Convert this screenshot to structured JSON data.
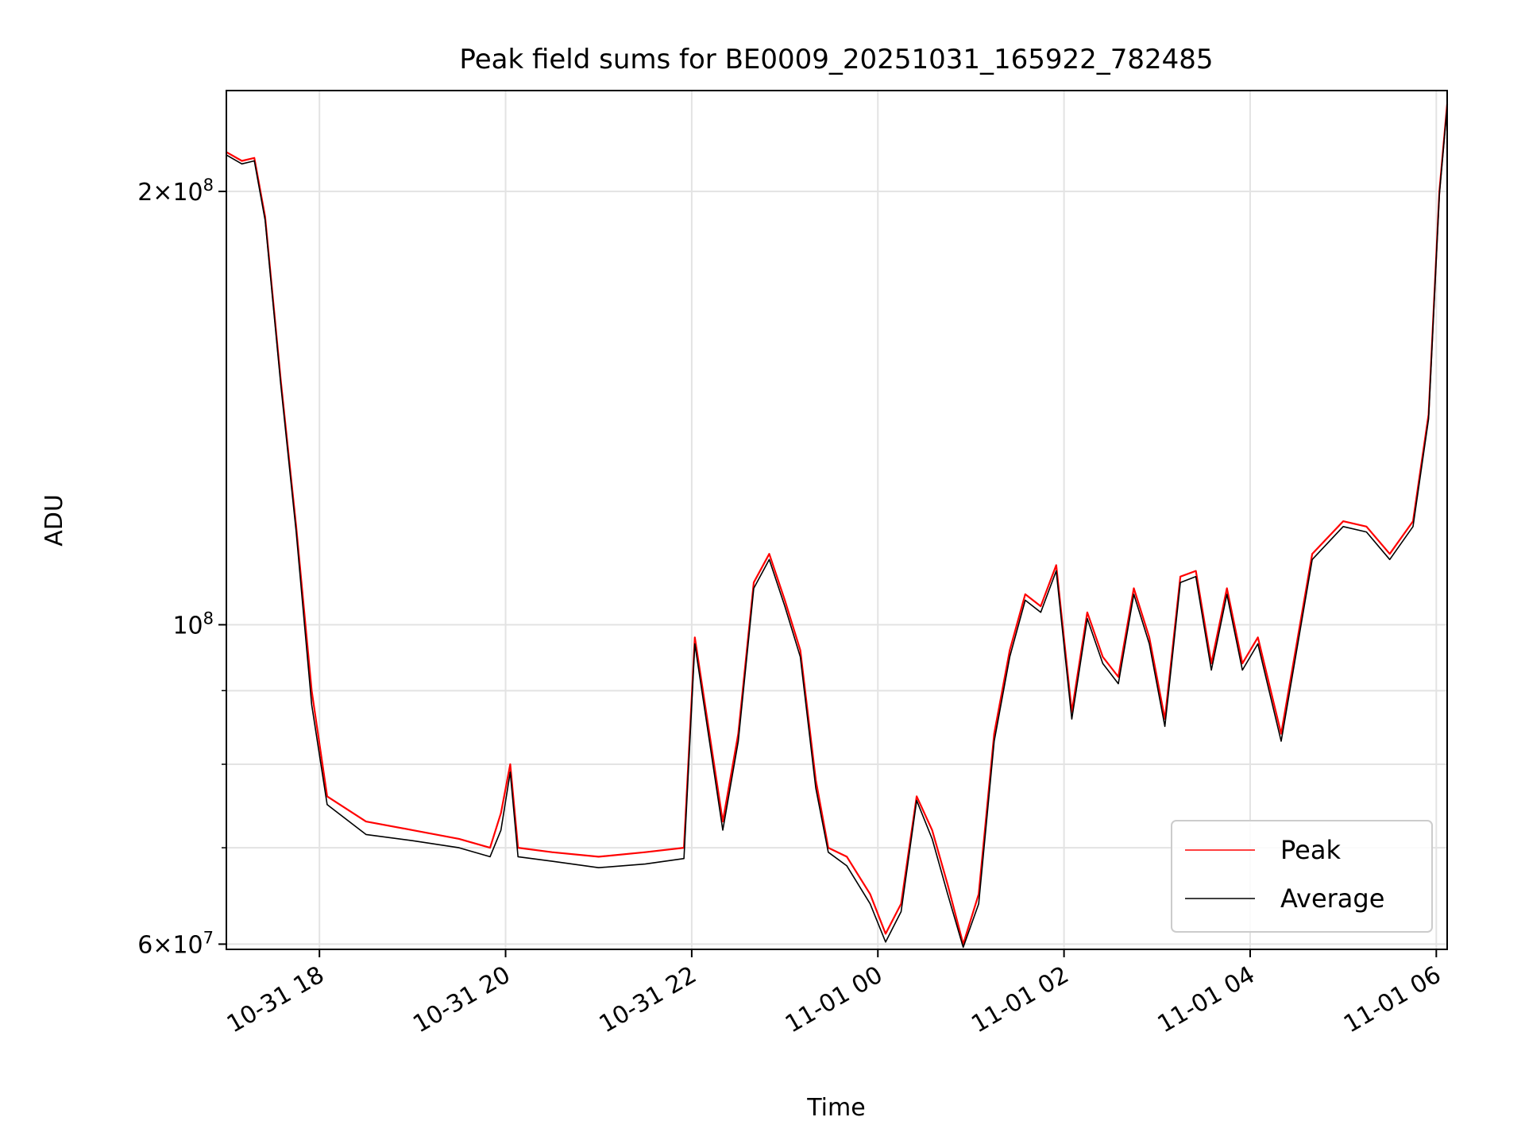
{
  "chart_data": {
    "type": "line",
    "title": "Peak field sums for BE0009_20251031_165922_782485",
    "xlabel": "Time",
    "ylabel": "ADU",
    "yscale": "log",
    "ylim": [
      59500000,
      235000000
    ],
    "xlim": [
      "2025-10-31 17:00",
      "2025-11-01 06:07"
    ],
    "grid": true,
    "legend_position": "lower-right",
    "x_ticks": [
      {
        "value": "2025-10-31 18:00",
        "label": "10-31 18"
      },
      {
        "value": "2025-10-31 20:00",
        "label": "10-31 20"
      },
      {
        "value": "2025-10-31 22:00",
        "label": "10-31 22"
      },
      {
        "value": "2025-11-01 00:00",
        "label": "11-01 00"
      },
      {
        "value": "2025-11-01 02:00",
        "label": "11-01 02"
      },
      {
        "value": "2025-11-01 04:00",
        "label": "11-01 04"
      },
      {
        "value": "2025-11-01 06:00",
        "label": "11-01 06"
      }
    ],
    "y_major_ticks": [
      {
        "value": 60000000,
        "base": "6",
        "exp": "7"
      },
      {
        "value": 100000000,
        "base": "",
        "exp": "8"
      },
      {
        "value": 200000000,
        "base": "2",
        "exp": "8"
      }
    ],
    "y_minor_ticks": [
      70000000,
      80000000,
      90000000
    ],
    "series": [
      {
        "name": "Peak",
        "color": "#ff0000",
        "x": [
          "2025-10-31 17:00",
          "2025-10-31 17:10",
          "2025-10-31 17:18",
          "2025-10-31 17:25",
          "2025-10-31 17:35",
          "2025-10-31 17:45",
          "2025-10-31 17:55",
          "2025-10-31 18:05",
          "2025-10-31 18:30",
          "2025-10-31 19:00",
          "2025-10-31 19:30",
          "2025-10-31 19:50",
          "2025-10-31 19:57",
          "2025-10-31 20:03",
          "2025-10-31 20:08",
          "2025-10-31 20:30",
          "2025-10-31 21:00",
          "2025-10-31 21:30",
          "2025-10-31 21:55",
          "2025-10-31 22:02",
          "2025-10-31 22:10",
          "2025-10-31 22:20",
          "2025-10-31 22:30",
          "2025-10-31 22:40",
          "2025-10-31 22:50",
          "2025-10-31 23:00",
          "2025-10-31 23:10",
          "2025-10-31 23:20",
          "2025-10-31 23:28",
          "2025-10-31 23:40",
          "2025-10-31 23:55",
          "2025-11-01 00:05",
          "2025-11-01 00:15",
          "2025-11-01 00:25",
          "2025-11-01 00:35",
          "2025-11-01 00:45",
          "2025-11-01 00:55",
          "2025-11-01 01:05",
          "2025-11-01 01:15",
          "2025-11-01 01:25",
          "2025-11-01 01:35",
          "2025-11-01 01:45",
          "2025-11-01 01:55",
          "2025-11-01 02:05",
          "2025-11-01 02:15",
          "2025-11-01 02:25",
          "2025-11-01 02:35",
          "2025-11-01 02:45",
          "2025-11-01 02:55",
          "2025-11-01 03:05",
          "2025-11-01 03:15",
          "2025-11-01 03:25",
          "2025-11-01 03:35",
          "2025-11-01 03:45",
          "2025-11-01 03:55",
          "2025-11-01 04:05",
          "2025-11-01 04:20",
          "2025-11-01 04:40",
          "2025-11-01 05:00",
          "2025-11-01 05:15",
          "2025-11-01 05:30",
          "2025-11-01 05:45",
          "2025-11-01 05:55",
          "2025-11-01 06:02",
          "2025-11-01 06:07"
        ],
        "values": [
          213000000,
          210000000,
          211000000,
          192000000,
          148000000,
          117000000,
          90000000,
          76000000,
          73000000,
          72000000,
          71000000,
          70000000,
          74000000,
          80000000,
          70000000,
          69500000,
          69000000,
          69500000,
          70000000,
          98000000,
          86000000,
          73000000,
          84000000,
          107000000,
          112000000,
          104000000,
          96000000,
          78000000,
          70000000,
          69000000,
          65000000,
          61000000,
          64000000,
          76000000,
          72000000,
          66000000,
          60000000,
          65000000,
          84000000,
          96000000,
          105000000,
          103000000,
          110000000,
          87000000,
          102000000,
          95000000,
          92000000,
          106000000,
          98000000,
          86000000,
          108000000,
          109000000,
          94000000,
          106000000,
          94000000,
          98000000,
          84000000,
          112000000,
          118000000,
          117000000,
          112000000,
          118000000,
          140000000,
          200000000,
          230000000
        ]
      },
      {
        "name": "Average",
        "color": "#000000",
        "x": [
          "2025-10-31 17:00",
          "2025-10-31 17:10",
          "2025-10-31 17:18",
          "2025-10-31 17:25",
          "2025-10-31 17:35",
          "2025-10-31 17:45",
          "2025-10-31 17:55",
          "2025-10-31 18:05",
          "2025-10-31 18:30",
          "2025-10-31 19:00",
          "2025-10-31 19:30",
          "2025-10-31 19:50",
          "2025-10-31 19:57",
          "2025-10-31 20:03",
          "2025-10-31 20:08",
          "2025-10-31 20:30",
          "2025-10-31 21:00",
          "2025-10-31 21:30",
          "2025-10-31 21:55",
          "2025-10-31 22:02",
          "2025-10-31 22:10",
          "2025-10-31 22:20",
          "2025-10-31 22:30",
          "2025-10-31 22:40",
          "2025-10-31 22:50",
          "2025-10-31 23:00",
          "2025-10-31 23:10",
          "2025-10-31 23:20",
          "2025-10-31 23:28",
          "2025-10-31 23:40",
          "2025-10-31 23:55",
          "2025-11-01 00:05",
          "2025-11-01 00:15",
          "2025-11-01 00:25",
          "2025-11-01 00:35",
          "2025-11-01 00:45",
          "2025-11-01 00:55",
          "2025-11-01 01:05",
          "2025-11-01 01:15",
          "2025-11-01 01:25",
          "2025-11-01 01:35",
          "2025-11-01 01:45",
          "2025-11-01 01:55",
          "2025-11-01 02:05",
          "2025-11-01 02:15",
          "2025-11-01 02:25",
          "2025-11-01 02:35",
          "2025-11-01 02:45",
          "2025-11-01 02:55",
          "2025-11-01 03:05",
          "2025-11-01 03:15",
          "2025-11-01 03:25",
          "2025-11-01 03:35",
          "2025-11-01 03:45",
          "2025-11-01 03:55",
          "2025-11-01 04:05",
          "2025-11-01 04:20",
          "2025-11-01 04:40",
          "2025-11-01 05:00",
          "2025-11-01 05:15",
          "2025-11-01 05:30",
          "2025-11-01 05:45",
          "2025-11-01 05:55",
          "2025-11-01 06:02",
          "2025-11-01 06:07"
        ],
        "values": [
          212000000,
          209000000,
          210000000,
          191000000,
          147000000,
          116000000,
          88000000,
          75000000,
          71500000,
          70800000,
          70000000,
          69000000,
          72000000,
          79000000,
          69000000,
          68500000,
          67800000,
          68200000,
          68800000,
          97000000,
          85000000,
          72000000,
          83000000,
          106000000,
          111000000,
          103000000,
          95000000,
          77000000,
          69500000,
          68000000,
          64000000,
          60200000,
          63200000,
          75500000,
          71000000,
          65000000,
          59700000,
          64000000,
          83000000,
          95000000,
          104000000,
          102000000,
          109000000,
          86000000,
          101000000,
          94000000,
          91000000,
          105000000,
          97000000,
          85000000,
          107000000,
          108000000,
          93000000,
          105000000,
          93000000,
          97000000,
          83000000,
          111000000,
          117000000,
          116000000,
          111000000,
          117000000,
          139000000,
          199000000,
          229000000
        ]
      }
    ]
  }
}
